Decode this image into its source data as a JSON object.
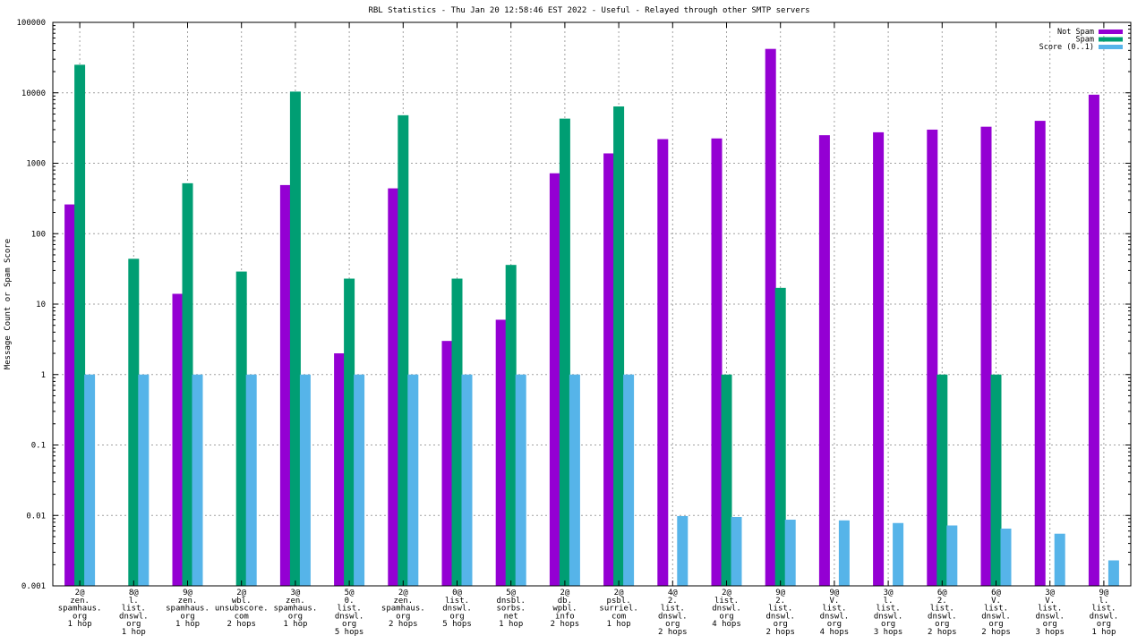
{
  "chart_data": {
    "type": "bar",
    "title": "RBL Statistics - Thu Jan 20 12:58:46 EST 2022 - Useful - Relayed through other SMTP servers",
    "xlabel": "",
    "ylabel": "Message Count or Spam Score",
    "yscale": "log",
    "ylim": [
      0.001,
      100000
    ],
    "yticks": [
      "0.001",
      "0.01",
      "0.1",
      "1",
      "10",
      "100",
      "1000",
      "10000",
      "100000"
    ],
    "grid": true,
    "legend_position": "top-right",
    "categories": [
      [
        "2@",
        "zen.",
        "spamhaus.",
        "org",
        "1 hop"
      ],
      [
        "8@",
        "l.",
        "list.",
        "dnswl.",
        "org",
        "1 hop"
      ],
      [
        "9@",
        "zen.",
        "spamhaus.",
        "org",
        "1 hop"
      ],
      [
        "2@",
        "wbl.",
        "unsubscore.",
        "com",
        "2 hops"
      ],
      [
        "3@",
        "zen.",
        "spamhaus.",
        "org",
        "1 hop"
      ],
      [
        "5@",
        "0.",
        "list.",
        "dnswl.",
        "org",
        "5 hops"
      ],
      [
        "2@",
        "zen.",
        "spamhaus.",
        "org",
        "2 hops"
      ],
      [
        "0@",
        "list.",
        "dnswl.",
        "org",
        "5 hops"
      ],
      [
        "5@",
        "dnsbl.",
        "sorbs.",
        "net",
        "1 hop"
      ],
      [
        "2@",
        "db.",
        "wpbl.",
        "info",
        "2 hops"
      ],
      [
        "2@",
        "psbl.",
        "surriel.",
        "com",
        "1 hop"
      ],
      [
        "4@",
        "2.",
        "list.",
        "dnswl.",
        "org",
        "2 hops"
      ],
      [
        "2@",
        "list.",
        "dnswl.",
        "org",
        "4 hops"
      ],
      [
        "9@",
        "2.",
        "list.",
        "dnswl.",
        "org",
        "2 hops"
      ],
      [
        "9@",
        "V.",
        "list.",
        "dnswl.",
        "org",
        "4 hops"
      ],
      [
        "3@",
        "l.",
        "list.",
        "dnswl.",
        "org",
        "3 hops"
      ],
      [
        "6@",
        "2.",
        "list.",
        "dnswl.",
        "org",
        "2 hops"
      ],
      [
        "6@",
        "V.",
        "list.",
        "dnswl.",
        "org",
        "2 hops"
      ],
      [
        "3@",
        "V.",
        "list.",
        "dnswl.",
        "org",
        "3 hops"
      ],
      [
        "9@",
        "l.",
        "list.",
        "dnswl.",
        "org",
        "1 hop"
      ]
    ],
    "series": [
      {
        "name": "Not Spam",
        "color": "#9400d3",
        "values": [
          260,
          null,
          14,
          null,
          490,
          2,
          440,
          3,
          6,
          720,
          1380,
          2200,
          2250,
          42000,
          2500,
          2750,
          3000,
          3300,
          4000,
          9400
        ]
      },
      {
        "name": "Spam",
        "color": "#009e73",
        "values": [
          25000,
          44,
          520,
          29,
          10400,
          23,
          4800,
          23,
          36,
          4300,
          6400,
          null,
          1,
          17,
          null,
          null,
          1,
          1,
          null,
          null
        ]
      },
      {
        "name": "Score (0..1)",
        "color": "#56b4e9",
        "values": [
          1,
          1,
          1,
          1,
          1,
          1,
          1,
          1,
          1,
          1,
          1,
          0.0098,
          0.0095,
          0.0087,
          0.0085,
          0.0078,
          0.0072,
          0.0065,
          0.0055,
          0.0023
        ]
      }
    ]
  }
}
